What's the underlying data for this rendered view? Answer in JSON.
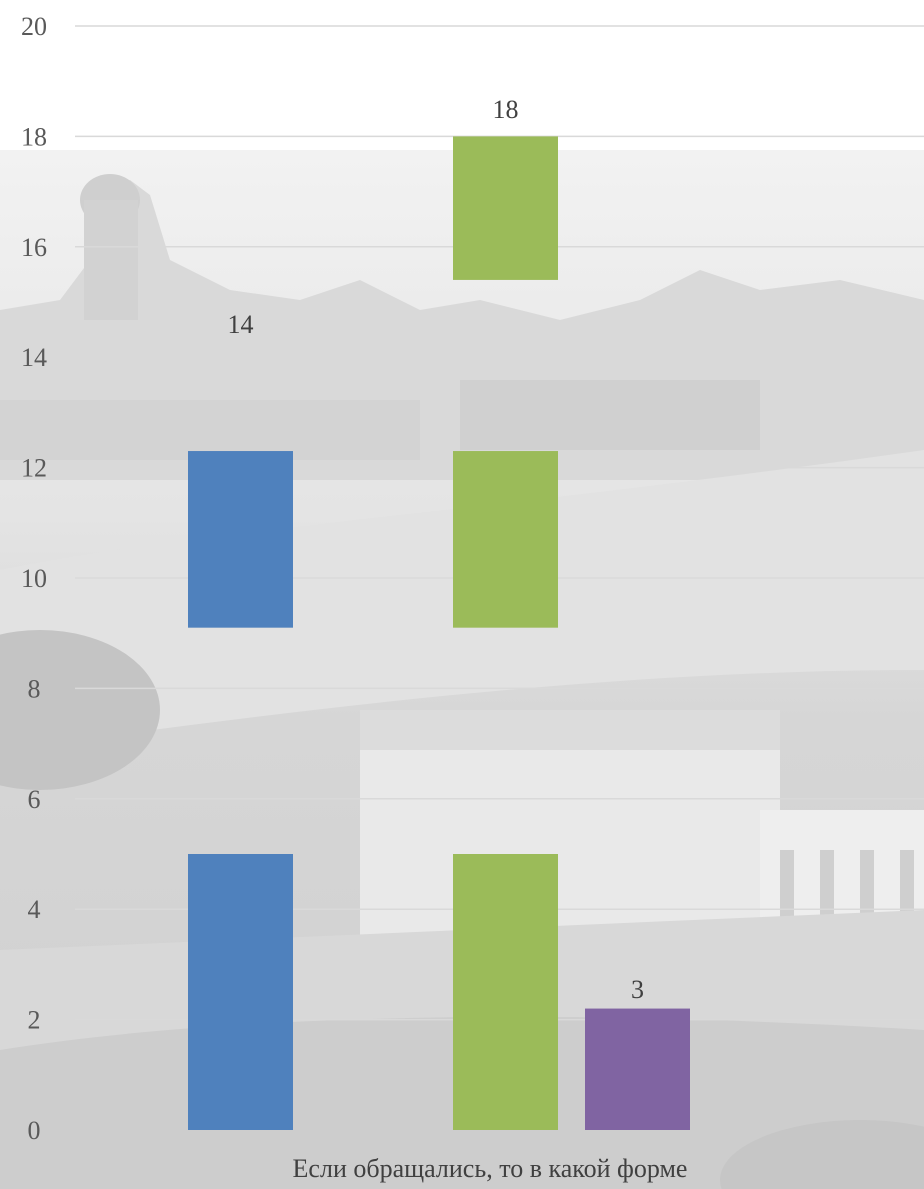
{
  "chart_data": {
    "type": "bar",
    "title": "",
    "xlabel": "Если обращались, то в какой форме",
    "ylabel": "",
    "ylim": [
      0,
      20
    ],
    "ytick_step": 2,
    "ytick_labels": [
      "0",
      "2",
      "4",
      "6",
      "8",
      "10",
      "12",
      "14",
      "16",
      "18",
      "20"
    ],
    "grid": true,
    "legend": "none",
    "series": [
      {
        "values": [
          5,
          14
        ],
        "color": "#4F81BD",
        "data_label": "14"
      },
      {
        "values": [
          5,
          14,
          18
        ],
        "color": "#9BBB59",
        "data_label": "18"
      },
      {
        "values": [
          3
        ],
        "color": "#8064A2",
        "data_label": "3"
      }
    ],
    "background": "faded grayscale city photograph"
  }
}
